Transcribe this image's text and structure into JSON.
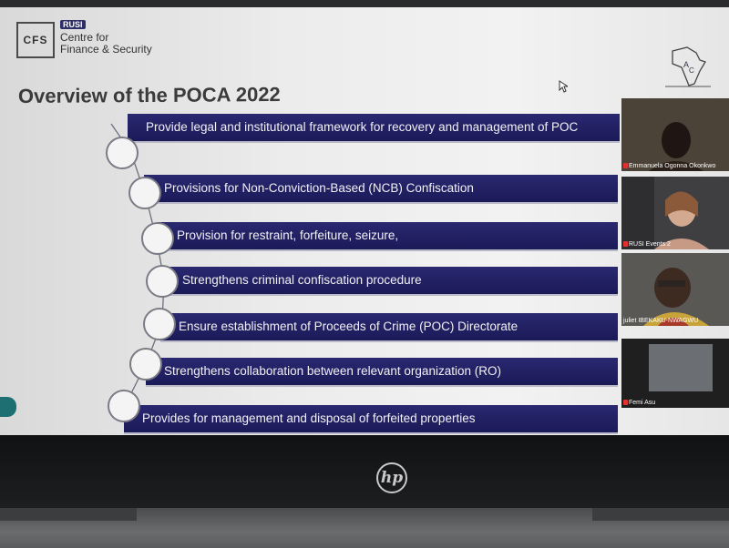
{
  "logo": {
    "cfs": "CFS",
    "rusi": "RUSI",
    "org_line1": "Centre for",
    "org_line2": "Finance & Security"
  },
  "slide_title": "Overview of the POCA 2022",
  "bullets": [
    "Provide legal and institutional framework for recovery and management of POC",
    "Provisions for Non-Conviction-Based (NCB) Confiscation",
    "Provision for restraint, forfeiture, seizure,",
    "Strengthens criminal confiscation procedure",
    "Ensure establishment of Proceeds of Crime (POC) Directorate",
    "Strengthens collaboration between relevant organization (RO)",
    "Provides for management and disposal of forfeited properties"
  ],
  "participants": [
    {
      "name": "Emmanuela Ogonna Okonkwo"
    },
    {
      "name": "RUSI Events 2"
    },
    {
      "name": "juliet IBEKAKU-NWAGWU"
    },
    {
      "name": "Femi Asu"
    }
  ],
  "device_brand": "hp",
  "colors": {
    "bar": "#1f1d60",
    "accent_mic": "#e53030"
  }
}
